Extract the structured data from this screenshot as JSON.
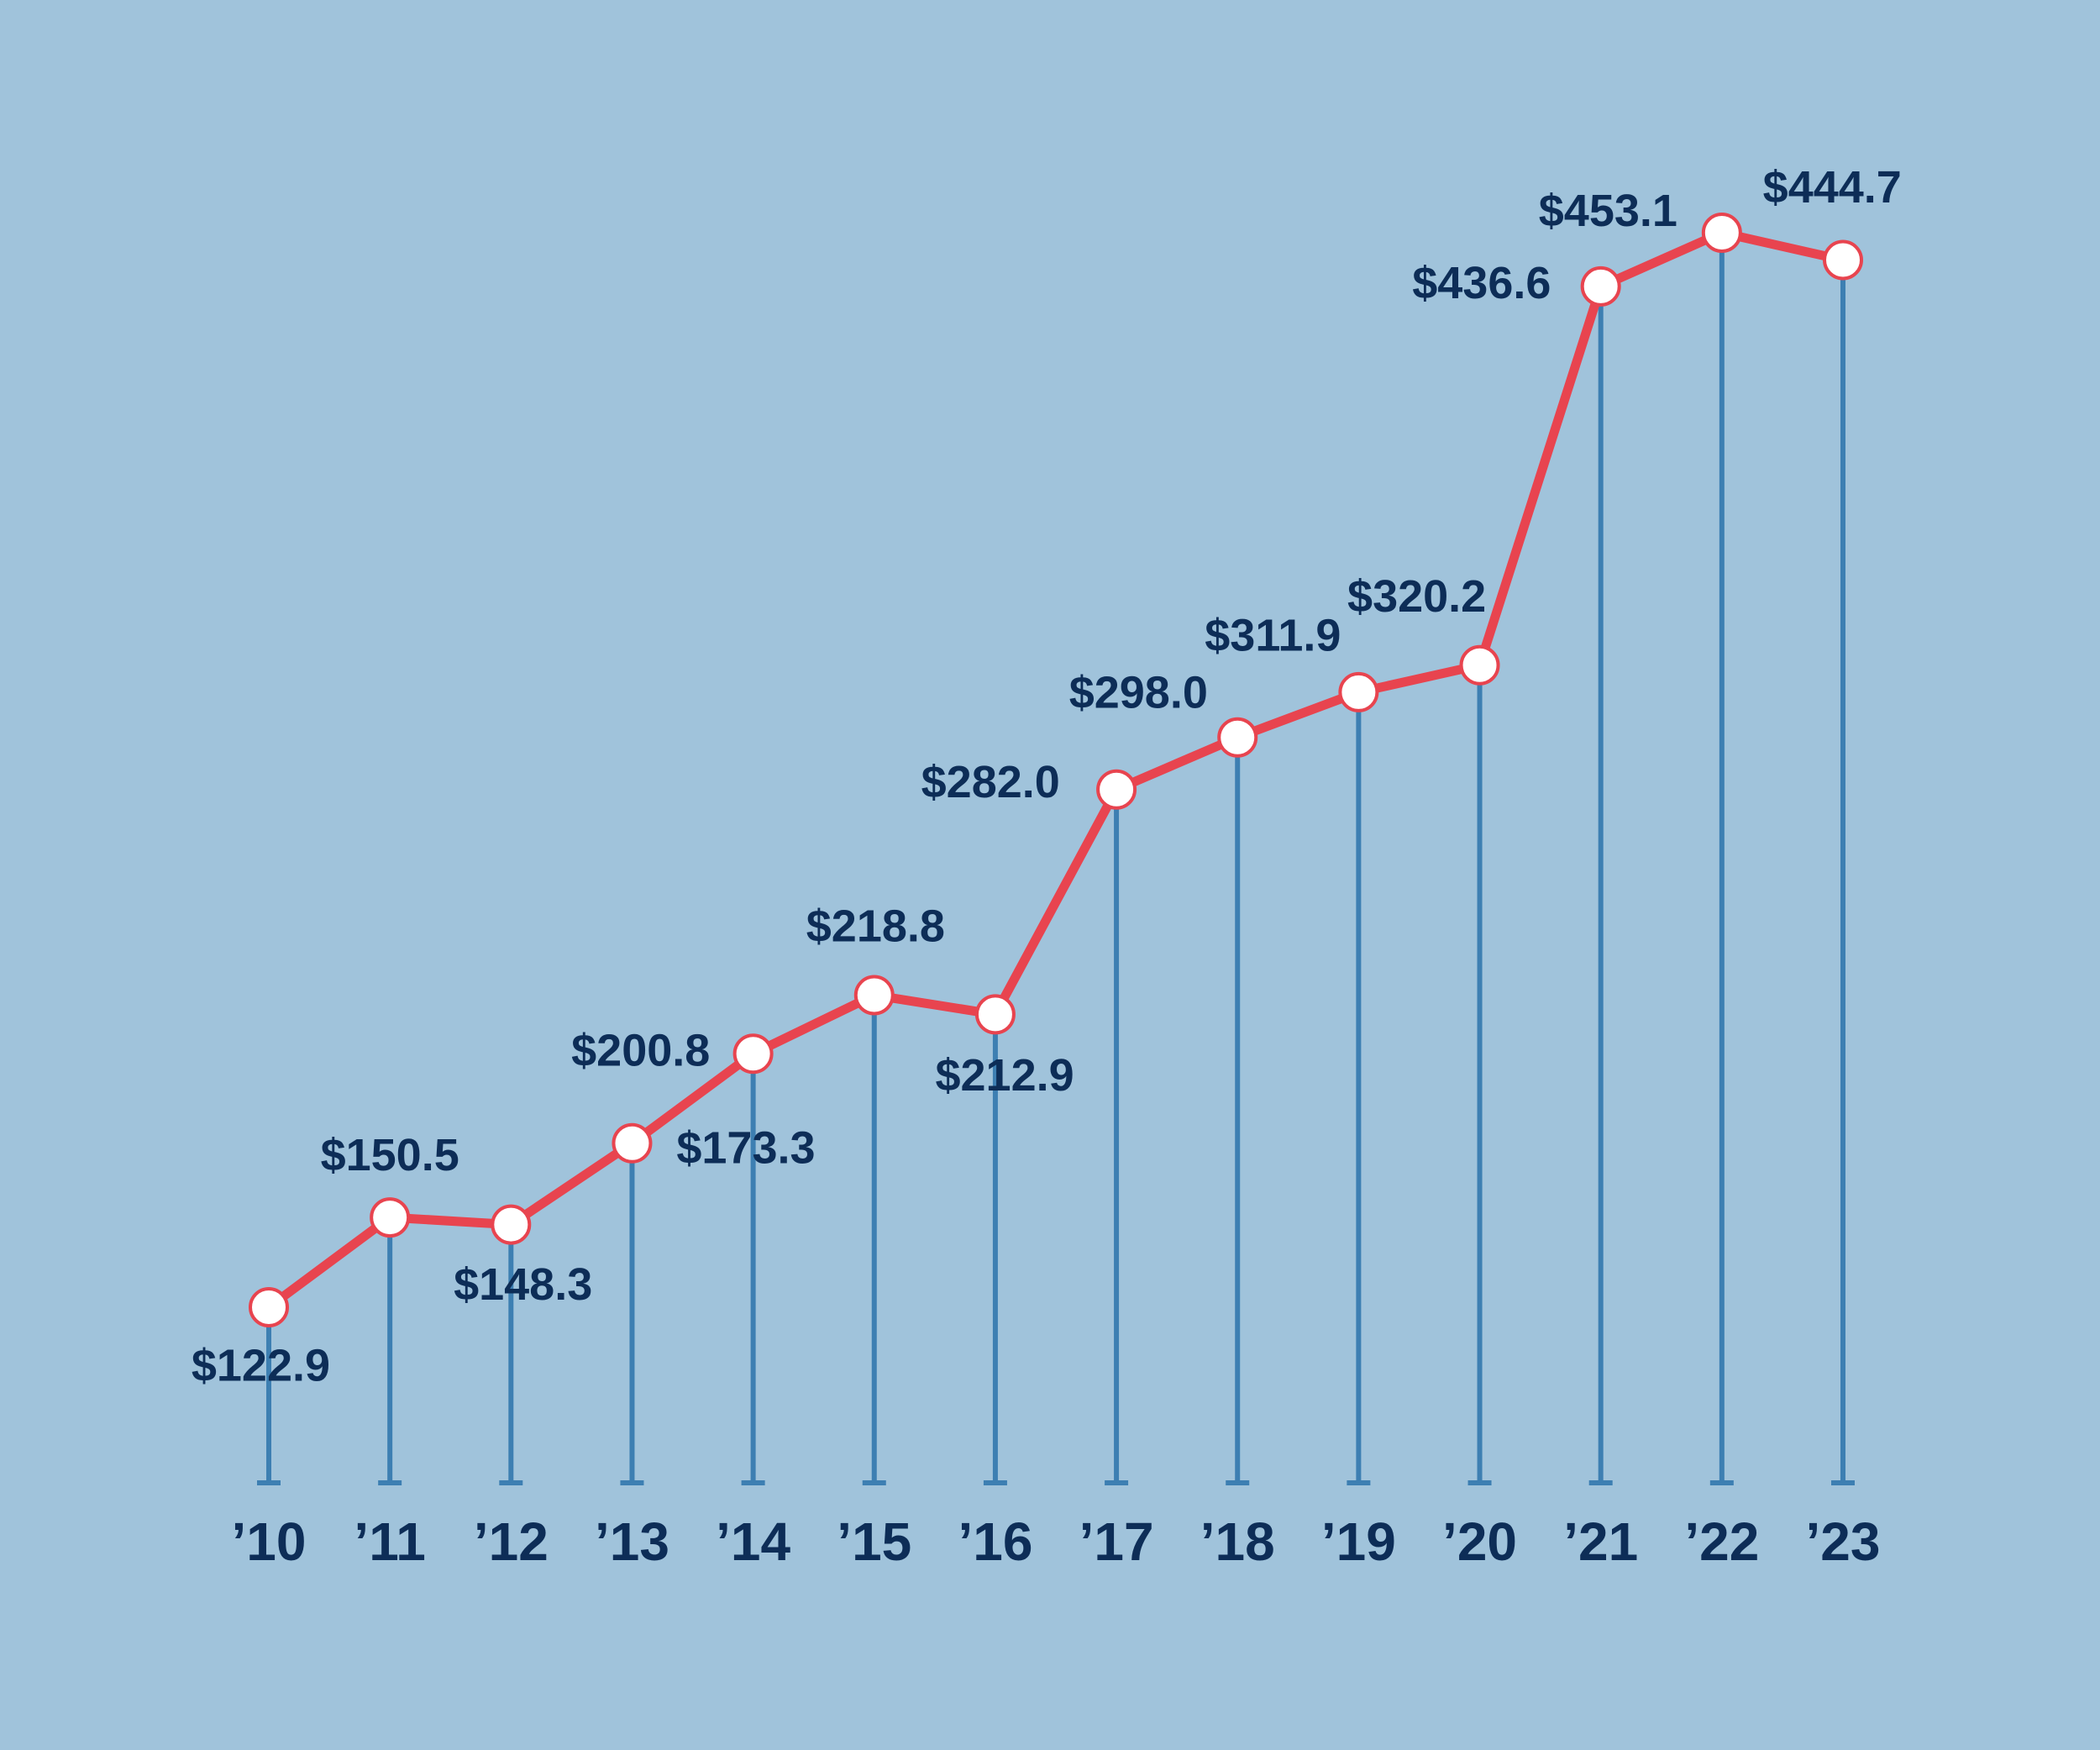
{
  "chart_data": {
    "type": "line",
    "categories": [
      "’10",
      "’11",
      "’12",
      "’13",
      "’14",
      "’15",
      "’16",
      "’17",
      "’18",
      "’19",
      "’20",
      "’21",
      "’22",
      "’23"
    ],
    "values": [
      122.9,
      150.5,
      148.3,
      173.3,
      200.8,
      218.8,
      212.9,
      282.0,
      298.0,
      311.9,
      320.2,
      436.6,
      453.1,
      444.7
    ],
    "value_labels": [
      "$122.9",
      "$150.5",
      "$148.3",
      "$173.3",
      "$200.8",
      "$218.8",
      "$212.9",
      "$282.0",
      "$298.0",
      "$311.9",
      "$320.2",
      "$436.6",
      "$453.1",
      "$444.7"
    ],
    "color": "#e8444f",
    "drop_line_color": "#3d7fb2"
  }
}
